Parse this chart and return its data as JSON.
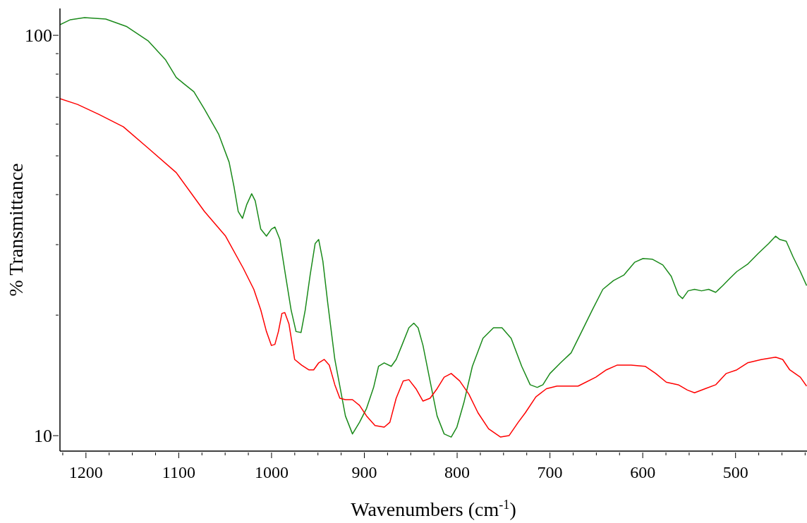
{
  "chart_data": {
    "type": "line",
    "xlabel": "Wavenumbers (cm$^{-1}$)",
    "ylabel": "% Transmittance",
    "log": "y",
    "marker": "none",
    "line_style": "solid",
    "xlim": [
      1228,
      423
    ],
    "ylim": [
      9.15,
      116.7
    ],
    "xticks": [
      {
        "value": 1225,
        "label": null
      },
      1200,
      {
        "value": 1175,
        "label": null
      },
      {
        "value": 1150,
        "label": null
      },
      {
        "value": 1125,
        "label": null
      },
      1100,
      {
        "value": 1075,
        "label": null
      },
      {
        "value": 1050,
        "label": null
      },
      {
        "value": 1025,
        "label": null
      },
      1000,
      {
        "value": 975,
        "label": null
      },
      {
        "value": 950,
        "label": null
      },
      {
        "value": 925,
        "label": null
      },
      900,
      {
        "value": 875,
        "label": null
      },
      {
        "value": 850,
        "label": null
      },
      {
        "value": 825,
        "label": null
      },
      800,
      {
        "value": 775,
        "label": null
      },
      {
        "value": 750,
        "label": null
      },
      {
        "value": 725,
        "label": null
      },
      700,
      {
        "value": 675,
        "label": null
      },
      {
        "value": 650,
        "label": null
      },
      {
        "value": 625,
        "label": null
      },
      600,
      {
        "value": 575,
        "label": null
      },
      {
        "value": 550,
        "label": null
      },
      {
        "value": 525,
        "label": null
      },
      500,
      {
        "value": 475,
        "label": null
      },
      {
        "value": 450,
        "label": null
      },
      {
        "value": 425,
        "label": null
      }
    ],
    "yticks": [
      10,
      {
        "value": 20,
        "label": null
      },
      {
        "value": 30,
        "label": null
      },
      {
        "value": 40,
        "label": null
      },
      {
        "value": 50,
        "label": null
      },
      {
        "value": 60,
        "label": null
      },
      {
        "value": 70,
        "label": null
      },
      {
        "value": 80,
        "label": null
      },
      {
        "value": 90,
        "label": null
      },
      100
    ],
    "series": [
      {
        "color": "#1a8a1a",
        "x": [
          1228,
          1216.7,
          1201.5,
          1178.7,
          1155.9,
          1133.1,
          1114.1,
          1102.7,
          1095.1,
          1083.7,
          1072.3,
          1057.1,
          1045.7,
          1040.4,
          1035.9,
          1031.3,
          1026.7,
          1021.4,
          1017.6,
          1011.6,
          1005.5,
          1000.2,
          996.4,
          991.0,
          985.0,
          978.9,
          973.6,
          968.2,
          963.7,
          958.4,
          953.0,
          949.2,
          944.7,
          939.4,
          931.8,
          920.4,
          912.8,
          905.2,
          897.6,
          890.0,
          884.7,
          878.6,
          871.0,
          865.7,
          859.6,
          852.0,
          846.7,
          842.1,
          836.8,
          829.2,
          821.6,
          814.0,
          806.4,
          800.3,
          792.7,
          783.6,
          772.2,
          760.8,
          751.7,
          741.8,
          730.4,
          721.3,
          713.7,
          707.6,
          700.0,
          688.6,
          677.2,
          665.8,
          654.4,
          643.0,
          631.6,
          620.2,
          608.8,
          599.7,
          589.8,
          578.4,
          569.3,
          561.7,
          557.1,
          551.1,
          544.2,
          536.6,
          529.0,
          521.4,
          513.8,
          506.2,
          498.6,
          487.1,
          475.7,
          464.3,
          456.8,
          452.3,
          445.4,
          437.8,
          430.2,
          423.4
        ],
        "values": [
          106.3,
          109.4,
          110.7,
          109.8,
          105.1,
          96.9,
          86.8,
          78.5,
          75.9,
          72.3,
          65.4,
          56.7,
          48.2,
          41.8,
          36.3,
          34.9,
          37.8,
          40.2,
          38.6,
          32.8,
          31.5,
          32.8,
          33.2,
          30.9,
          25.2,
          20.6,
          18.2,
          18.1,
          20.6,
          25.2,
          30.2,
          30.9,
          27.3,
          21.4,
          15.5,
          11.2,
          10.1,
          10.8,
          11.7,
          13.2,
          14.9,
          15.2,
          14.9,
          15.5,
          16.8,
          18.6,
          19.1,
          18.6,
          16.8,
          13.7,
          11.2,
          10.1,
          9.92,
          10.5,
          12.1,
          14.9,
          17.5,
          18.6,
          18.6,
          17.5,
          14.9,
          13.4,
          13.2,
          13.4,
          14.3,
          15.2,
          16.1,
          18.2,
          20.6,
          23.2,
          24.4,
          25.2,
          27.1,
          27.7,
          27.6,
          26.7,
          25.0,
          22.5,
          22.0,
          23.0,
          23.2,
          23.0,
          23.2,
          22.8,
          23.7,
          24.7,
          25.7,
          26.8,
          28.5,
          30.2,
          31.5,
          30.9,
          30.6,
          27.9,
          25.7,
          23.7
        ]
      },
      {
        "color": "#ff0000",
        "x": [
          1228,
          1209.1,
          1186.3,
          1159.7,
          1133.1,
          1102.7,
          1072.3,
          1049.5,
          1030.5,
          1019.1,
          1011.6,
          1005.5,
          1000.2,
          996.4,
          992.6,
          988.8,
          985.7,
          981.2,
          975.1,
          967.5,
          959.9,
          954.6,
          949.2,
          943.2,
          937.8,
          931.8,
          926.4,
          920.4,
          912.8,
          905.2,
          897.6,
          888.5,
          878.6,
          872.5,
          865.7,
          858.1,
          852.0,
          844.4,
          836.8,
          829.2,
          821.6,
          814.0,
          806.4,
          797.3,
          787.4,
          777.5,
          766.1,
          753.2,
          744.1,
          734.2,
          726.6,
          715.2,
          703.8,
          692.4,
          669.6,
          650.6,
          639.2,
          627.8,
          612.6,
          597.4,
          586.0,
          574.6,
          561.7,
          551.9,
          544.2,
          532.8,
          521.4,
          510.0,
          498.6,
          487.1,
          471.9,
          456.8,
          449.2,
          441.6,
          430.2,
          423.4
        ],
        "values": [
          69.5,
          67.2,
          63.5,
          59.1,
          52.3,
          45.4,
          36.3,
          31.5,
          26.2,
          23.2,
          20.6,
          18.2,
          16.8,
          16.9,
          18.2,
          20.2,
          20.3,
          19.0,
          15.5,
          15.0,
          14.6,
          14.6,
          15.2,
          15.5,
          15.0,
          13.4,
          12.4,
          12.3,
          12.3,
          11.9,
          11.2,
          10.6,
          10.5,
          10.8,
          12.4,
          13.7,
          13.8,
          13.1,
          12.2,
          12.4,
          13.1,
          14.0,
          14.3,
          13.7,
          12.7,
          11.4,
          10.4,
          9.92,
          10.0,
          10.8,
          11.4,
          12.5,
          13.1,
          13.3,
          13.3,
          14.0,
          14.6,
          15.0,
          15.0,
          14.9,
          14.3,
          13.6,
          13.4,
          13.0,
          12.8,
          13.1,
          13.4,
          14.3,
          14.6,
          15.2,
          15.5,
          15.7,
          15.5,
          14.6,
          14.0,
          13.3
        ]
      }
    ]
  }
}
